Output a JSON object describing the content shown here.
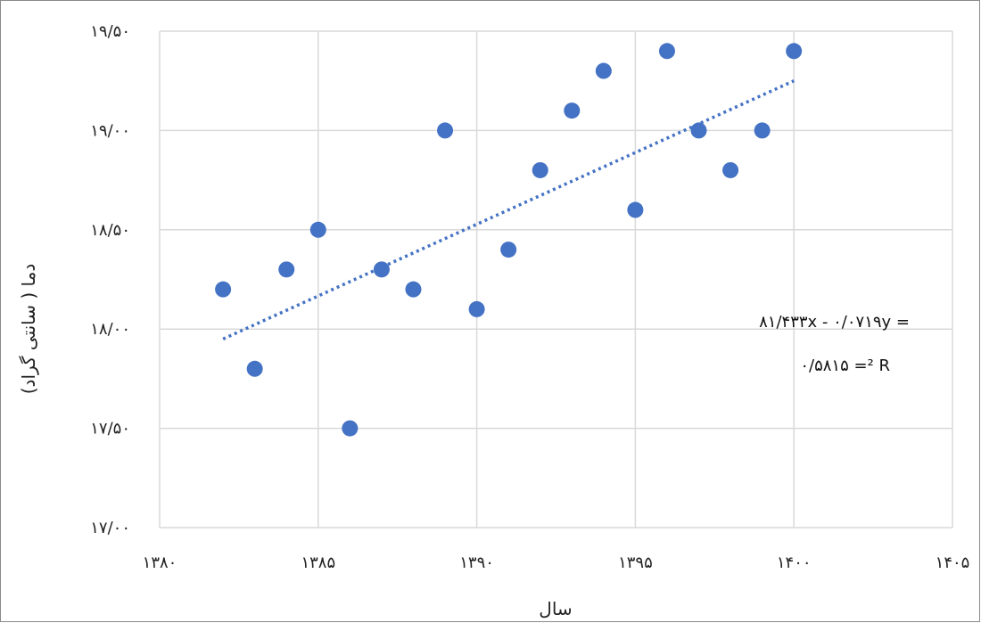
{
  "chart_data": {
    "type": "scatter",
    "xlabel": "سال",
    "ylabel": "دما ( سانتی گراد)",
    "xlim": [
      1380,
      1405
    ],
    "ylim": [
      17.0,
      19.5
    ],
    "x_ticks": [
      1380,
      1385,
      1390,
      1395,
      1400,
      1405
    ],
    "x_tick_labels": [
      "۱۳۸۰",
      "۱۳۸۵",
      "۱۳۹۰",
      "۱۳۹۵",
      "۱۴۰۰",
      "۱۴۰۵"
    ],
    "y_ticks": [
      17.0,
      17.5,
      18.0,
      18.5,
      19.0,
      19.5
    ],
    "y_tick_labels": [
      "۱۷/۰۰",
      "۱۷/۵۰",
      "۱۸/۰۰",
      "۱۸/۵۰",
      "۱۹/۰۰",
      "۱۹/۵۰"
    ],
    "grid": true,
    "series": [
      {
        "marker_color": "#4472C4",
        "points": [
          {
            "x": 1382,
            "y": 18.2
          },
          {
            "x": 1383,
            "y": 17.8
          },
          {
            "x": 1384,
            "y": 18.3
          },
          {
            "x": 1385,
            "y": 18.5
          },
          {
            "x": 1386,
            "y": 17.5
          },
          {
            "x": 1387,
            "y": 18.3
          },
          {
            "x": 1388,
            "y": 18.2
          },
          {
            "x": 1389,
            "y": 19.0
          },
          {
            "x": 1390,
            "y": 18.1
          },
          {
            "x": 1391,
            "y": 18.4
          },
          {
            "x": 1392,
            "y": 18.8
          },
          {
            "x": 1393,
            "y": 19.1
          },
          {
            "x": 1394,
            "y": 19.3
          },
          {
            "x": 1395,
            "y": 18.6
          },
          {
            "x": 1396,
            "y": 19.4
          },
          {
            "x": 1397,
            "y": 19.0
          },
          {
            "x": 1398,
            "y": 18.8
          },
          {
            "x": 1399,
            "y": 19.0
          },
          {
            "x": 1400,
            "y": 19.4
          }
        ]
      }
    ],
    "trendline": {
      "style": "dotted",
      "color": "#4472C4",
      "x": [
        1382,
        1400
      ],
      "y": [
        17.95,
        19.25
      ]
    },
    "equation_line1": "۸۱/۴۳۳x - ۰/۰۷۱۹y =",
    "equation_line2": "۰/۵۸۱۵ =² R"
  }
}
